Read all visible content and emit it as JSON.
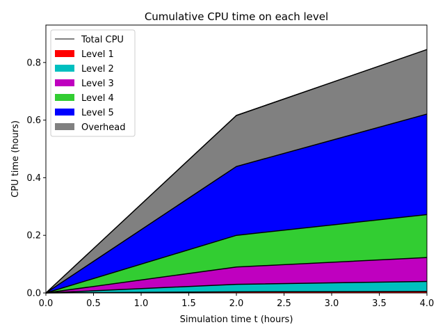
{
  "chart_data": {
    "type": "area",
    "stacked": true,
    "title": "Cumulative CPU time on each level",
    "xlabel": "Simulation time t (hours)",
    "ylabel": "CPU time (hours)",
    "xlim": [
      0.0,
      4.0
    ],
    "ylim": [
      0.0,
      0.93
    ],
    "x_ticks": [
      "0.0",
      "0.5",
      "1.0",
      "1.5",
      "2.0",
      "2.5",
      "3.0",
      "3.5",
      "4.0"
    ],
    "y_ticks": [
      "0.0",
      "0.2",
      "0.4",
      "0.6",
      "0.8"
    ],
    "x": [
      0.0,
      2.0,
      4.0
    ],
    "series": [
      {
        "name": "Level 1",
        "color": "#ff0000",
        "values": [
          0.0,
          0.004,
          0.005
        ]
      },
      {
        "name": "Level 2",
        "color": "#00bfbf",
        "values": [
          0.0,
          0.026,
          0.035
        ]
      },
      {
        "name": "Level 3",
        "color": "#bf00bf",
        "values": [
          0.0,
          0.06,
          0.083
        ]
      },
      {
        "name": "Level 4",
        "color": "#32cd32",
        "values": [
          0.0,
          0.11,
          0.149
        ]
      },
      {
        "name": "Level 5",
        "color": "#0000ff",
        "values": [
          0.0,
          0.239,
          0.349
        ]
      },
      {
        "name": "Overhead",
        "color": "#808080",
        "values": [
          0.0,
          0.177,
          0.224
        ]
      }
    ],
    "total": {
      "name": "Total CPU",
      "color": "#000000",
      "values": [
        0.0,
        0.617,
        0.845
      ]
    },
    "legend_position": "top-left",
    "grid": false
  }
}
